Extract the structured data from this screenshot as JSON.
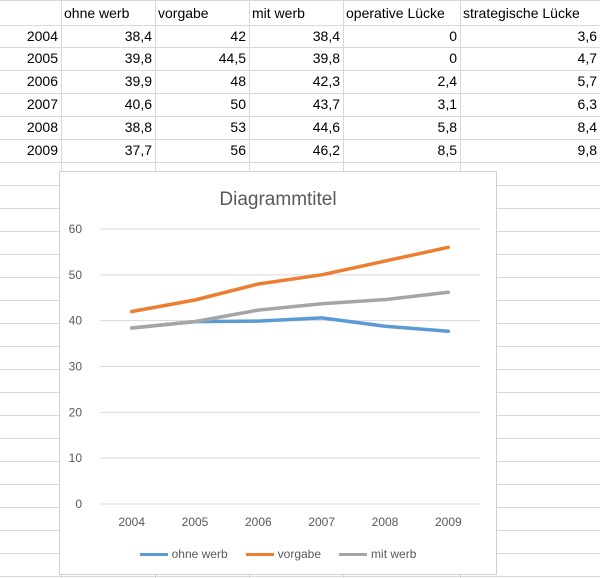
{
  "table": {
    "headers": [
      "",
      "ohne werb",
      "vorgabe",
      "mit werb",
      "operative Lücke",
      "strategische Lücke"
    ],
    "rows": [
      [
        "2004",
        "38,4",
        "42",
        "38,4",
        "0",
        "3,6"
      ],
      [
        "2005",
        "39,8",
        "44,5",
        "39,8",
        "0",
        "4,7"
      ],
      [
        "2006",
        "39,9",
        "48",
        "42,3",
        "2,4",
        "5,7"
      ],
      [
        "2007",
        "40,6",
        "50",
        "43,7",
        "3,1",
        "6,3"
      ],
      [
        "2008",
        "38,8",
        "53",
        "44,6",
        "5,8",
        "8,4"
      ],
      [
        "2009",
        "37,7",
        "56",
        "46,2",
        "8,5",
        "9,8"
      ]
    ]
  },
  "chart_data": {
    "type": "line",
    "title": "Diagrammtitel",
    "categories": [
      "2004",
      "2005",
      "2006",
      "2007",
      "2008",
      "2009"
    ],
    "series": [
      {
        "name": "ohne werb",
        "values": [
          38.4,
          39.8,
          39.9,
          40.6,
          38.8,
          37.7
        ],
        "color": "#5b9bd5"
      },
      {
        "name": "vorgabe",
        "values": [
          42,
          44.5,
          48,
          50,
          53,
          56
        ],
        "color": "#ed7d31"
      },
      {
        "name": "mit werb",
        "values": [
          38.4,
          39.8,
          42.3,
          43.7,
          44.6,
          46.2
        ],
        "color": "#a5a5a5"
      }
    ],
    "ylim": [
      0,
      60
    ],
    "yticks": [
      "0",
      "10",
      "20",
      "30",
      "40",
      "50",
      "60"
    ],
    "grid": true,
    "legend": "bottom",
    "xlabel": "",
    "ylabel": ""
  },
  "colors": {
    "gridline": "#d9d9d9",
    "axis_text": "#595959",
    "title_text": "#595959"
  }
}
